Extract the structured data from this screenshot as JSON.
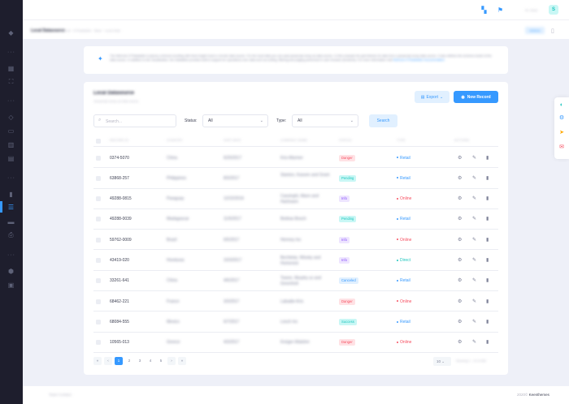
{
  "header": {
    "user_greeting": "Hi, Sean",
    "avatar_initial": "S"
  },
  "subheader": {
    "title": "Local Datasource",
    "breadcrumb": "Crud · KTDatatable · Base · Local Data",
    "button_label": "Actions"
  },
  "alert": {
    "text": "The Metronic KTDatatable is jQuery contrued scrolling with fixed height local or remote data source. For the local data you can pass javascript array as data source. In this example the grid fetches its data from a javascript array data source. It also defines the schema model of the data source. In addition to the visualization, the Datatable provides built-in support for operations over data such as sorting, filtering and paging performed in user browser (frontend). For more information visit",
    "link_text": "Metronic KTDatatable Documentation"
  },
  "card": {
    "title": "Local Datasource",
    "subtitle": "Javascript array as data source",
    "export_label": "Export",
    "new_record_label": "New Record"
  },
  "filters": {
    "search_placeholder": "Search...",
    "status_label": "Status:",
    "status_value": "All",
    "type_label": "Type:",
    "type_value": "All",
    "search_button": "Search"
  },
  "table": {
    "columns": [
      "Record ID",
      "Country",
      "Ship Date",
      "Company Name",
      "Status",
      "Type",
      "Actions"
    ],
    "rows": [
      {
        "id": "0374-5070",
        "country": "China",
        "date": "6/20/2017",
        "company": "Kris-Warmer",
        "status": "Danger",
        "status_class": "b-danger",
        "type": "Retail",
        "type_class": "t-retail"
      },
      {
        "id": "63868-257",
        "country": "Philippines",
        "date": "8/3/2017",
        "company": "Stanton, Kassen and Grant",
        "status": "Pending",
        "status_class": "b-pending",
        "type": "Retail",
        "type_class": "t-retail"
      },
      {
        "id": "49288-0815",
        "country": "Paraguay",
        "date": "12/22/2016",
        "company": "Cassinghi, Mann and Hartmann",
        "status": "Info",
        "status_class": "b-info",
        "type": "Online",
        "type_class": "t-online"
      },
      {
        "id": "49288-0039",
        "country": "Madagascar",
        "date": "11/5/2017",
        "company": "Bednar-Bosch",
        "status": "Pending",
        "status_class": "b-pending",
        "type": "Retail",
        "type_class": "t-retail"
      },
      {
        "id": "59762-0009",
        "country": "Brazil",
        "date": "6/5/2017",
        "company": "Hermey Inc",
        "status": "Info",
        "status_class": "b-info",
        "type": "Online",
        "type_class": "t-online"
      },
      {
        "id": "43419-020",
        "country": "Honduras",
        "date": "10/3/2017",
        "company": "Bechtelar, Wisoky and Homenick",
        "status": "Info",
        "status_class": "b-info",
        "type": "Direct",
        "type_class": "t-direct"
      },
      {
        "id": "33261-641",
        "country": "China",
        "date": "4/6/2017",
        "company": "Towne, Murphy sz and Greenholt",
        "status": "Canceled",
        "status_class": "b-canceled",
        "type": "Retail",
        "type_class": "t-retail"
      },
      {
        "id": "68462-221",
        "country": "France",
        "date": "3/3/2017",
        "company": "Labadie-Kris",
        "status": "Danger",
        "status_class": "b-danger",
        "type": "Online",
        "type_class": "t-online"
      },
      {
        "id": "68084-555",
        "country": "Mexico",
        "date": "6/7/2017",
        "company": "Lesch Inc",
        "status": "Success",
        "status_class": "b-success",
        "type": "Retail",
        "type_class": "t-retail"
      },
      {
        "id": "10565-013",
        "country": "Greece",
        "date": "4/3/2017",
        "company": "Kreiger-Walshm",
        "status": "Danger",
        "status_class": "b-danger",
        "type": "Online",
        "type_class": "t-online"
      }
    ]
  },
  "pagination": {
    "first": "«",
    "prev": "‹",
    "pages": [
      "1",
      "2",
      "3",
      "4",
      "5"
    ],
    "next": "›",
    "last": "»",
    "page_size": "10",
    "info": "Showing 1 - 10 of 350"
  },
  "footer": {
    "links": "Team   Contact",
    "year": "2020©",
    "brand": "Keenthemes"
  },
  "colors": {
    "accent": "#3699ff",
    "sidebar": "#1e1e2d",
    "danger": "#f64e60",
    "success": "#1bc5bd",
    "info": "#8950fc"
  },
  "icons": {
    "sidebar": [
      "layers-icon",
      "grid-icon",
      "expand-icon",
      "box-icon",
      "layout-icon",
      "columns-icon",
      "chart-icon",
      "list-icon",
      "file-icon",
      "print-icon",
      "cube-icon",
      "image-icon"
    ],
    "sticky": [
      "palette-icon",
      "gear-icon",
      "send-icon",
      "chat-icon"
    ]
  }
}
